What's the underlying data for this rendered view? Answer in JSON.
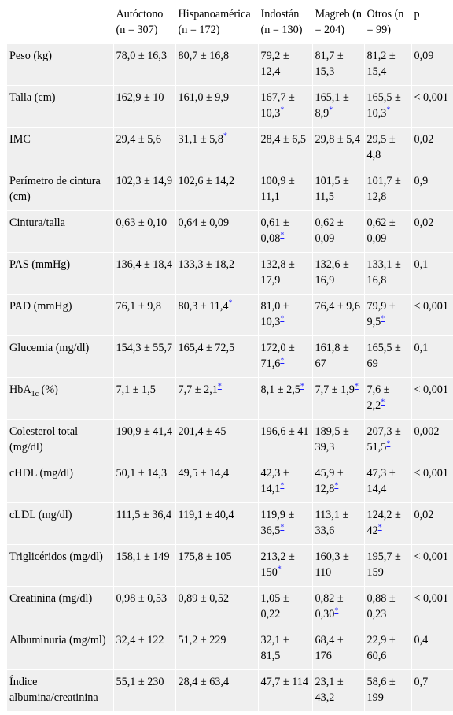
{
  "header": {
    "col0": "",
    "col1": "Autóctono (n = 307)",
    "col2": "Hispanoamérica (n = 172)",
    "col3": "Indostán (n = 130)",
    "col4": "Magreb (n = 204)",
    "col5": "Otros (n = 99)",
    "col6": "p"
  },
  "rows": [
    {
      "label": "Peso (kg)",
      "c1": "78,0 ± 16,3",
      "c2": "80,7 ± 16,8",
      "c3": "79,2 ± 12,4",
      "c4": "81,7 ± 15,3",
      "c5": "81,2 ± 15,4",
      "p": "0,09"
    },
    {
      "label": "Talla (cm)",
      "c1": "162,9 ± 10",
      "c2": "161,0 ± 9,9",
      "c3": "167,7 ± 10,3",
      "c4": "165,1 ± 8,9",
      "c5": "165,5 ± 10,3",
      "p": "< 0,001"
    },
    {
      "label": "IMC",
      "c1": "29,4 ± 5,6",
      "c2": "31,1 ± 5,8",
      "c3": "28,4 ± 6,5",
      "c4": "29,8 ± 5,4",
      "c5": "29,5 ± 4,8",
      "p": "0,02"
    },
    {
      "label": "Perímetro de cintura (cm)",
      "c1": "102,3 ± 14,9",
      "c2": "102,6 ± 14,2",
      "c3": "100,9 ± 11,1",
      "c4": "101,5 ± 11,5",
      "c5": "101,7 ± 12,8",
      "p": "0,9"
    },
    {
      "label": "Cintura/talla",
      "c1": "0,63 ± 0,10",
      "c2": "0,64 ± 0,09",
      "c3": "0,61 ± 0,08",
      "c4": "0,62 ± 0,09",
      "c5": "0,62 ± 0,09",
      "p": "0,02"
    },
    {
      "label": "PAS (mmHg)",
      "c1": "136,4 ± 18,4",
      "c2": "133,3 ± 18,2",
      "c3": "132,8 ± 17,9",
      "c4": "132,6 ± 16,9",
      "c5": "133,1 ± 16,8",
      "p": "0,1"
    },
    {
      "label": "PAD (mmHg)",
      "c1": "76,1 ± 9,8",
      "c2": "80,3 ± 11,4",
      "c3": "81,0 ± 10,3",
      "c4": "76,4 ± 9,6",
      "c5": "79,9 ± 9,5",
      "p": "< 0,001"
    },
    {
      "label": "Glucemia (mg/dl)",
      "c1": "154,3 ± 55,7",
      "c2": "165,4 ± 72,5",
      "c3": "172,0 ± 71,6",
      "c4": "161,8 ± 67",
      "c5": "165,5 ± 69",
      "p": "0,1"
    },
    {
      "label": "HbA",
      "label_sub": "1c",
      "label_tail": " (%)",
      "c1": "7,1 ± 1,5",
      "c2": "7,7 ± 2,1",
      "c3": "8,1 ± 2,5",
      "c4": "7,7 ± 1,9",
      "c5": "7,6 ± 2,2",
      "p": "< 0,001"
    },
    {
      "label": "Colesterol total (mg/dl)",
      "c1": "190,9 ± 41,4",
      "c2": "201,4 ± 45",
      "c3": "196,6 ± 41",
      "c4": "189,5 ± 39,3",
      "c5": "207,3 ± 51,5",
      "p": "0,002"
    },
    {
      "label": "cHDL (mg/dl)",
      "c1": "50,1 ± 14,3",
      "c2": "49,5 ± 14,4",
      "c3": "42,3 ± 14,1",
      "c4": "45,9 ± 12,8",
      "c5": "47,3 ± 14,4",
      "p": "< 0,001"
    },
    {
      "label": "cLDL (mg/dl)",
      "c1": "111,5 ± 36,4",
      "c2": "119,1 ± 40,4",
      "c3": "119,9 ± 36,5",
      "c4": "113,1 ± 33,6",
      "c5": "124,2 ± 42",
      "p": "0,02"
    },
    {
      "label": "Triglicéridos (mg/dl)",
      "c1": "158,1 ± 149",
      "c2": "175,8 ± 105",
      "c3": "213,2 ± 150",
      "c4": "160,3 ± 110",
      "c5": "195,7 ± 159",
      "p": "< 0,001"
    },
    {
      "label": "Creatinina (mg/dl)",
      "c1": "0,98 ± 0,53",
      "c2": "0,89 ± 0,52",
      "c3": "1,05 ± 0,22",
      "c4": "0,82 ± 0,30",
      "c5": "0,88 ± 0,23",
      "p": "< 0,001"
    },
    {
      "label": "Albuminuria (mg/ml)",
      "c1": "32,4 ± 122",
      "c2": "51,2 ± 229",
      "c3": "32,1 ± 81,5",
      "c4": "68,4 ± 176",
      "c5": "22,9 ± 60,6",
      "p": "0,4"
    },
    {
      "label": "Índice albumina/creatinina",
      "c1": "55,1 ± 230",
      "c2": "28,4 ± 63,4",
      "c3": "47,7 ± 114",
      "c4": "23,1 ± 43,2",
      "c5": "58,6 ± 199",
      "p": "0,7"
    }
  ],
  "footnote_mark": "*"
}
